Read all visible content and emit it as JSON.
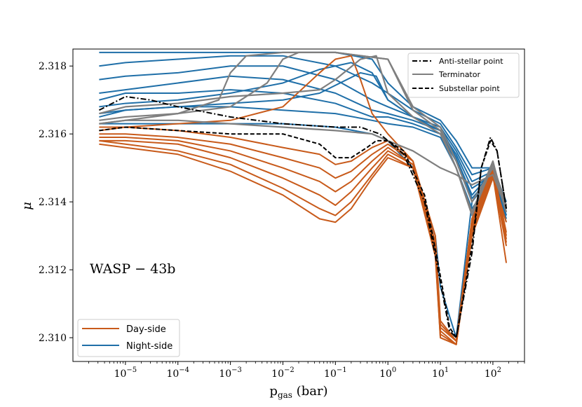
{
  "chart_data": {
    "type": "line",
    "title": "",
    "xlabel_main": "p",
    "xlabel_sub": "gas",
    "xlabel_unit": "(bar)",
    "ylabel": "μ",
    "xscale": "log",
    "xlim": [
      1e-06,
      400
    ],
    "ylim": [
      2.3093,
      2.3185
    ],
    "xticks": [
      {
        "value": 1e-05,
        "base": "10",
        "exp": "−5"
      },
      {
        "value": 0.0001,
        "base": "10",
        "exp": "−4"
      },
      {
        "value": 0.001,
        "base": "10",
        "exp": "−3"
      },
      {
        "value": 0.01,
        "base": "10",
        "exp": "−2"
      },
      {
        "value": 0.1,
        "base": "10",
        "exp": "−1"
      },
      {
        "value": 1,
        "base": "10",
        "exp": "0"
      },
      {
        "value": 10,
        "base": "10",
        "exp": "1"
      },
      {
        "value": 100,
        "base": "10",
        "exp": "2"
      }
    ],
    "yticks": [
      {
        "value": 2.31,
        "label": "2.310"
      },
      {
        "value": 2.312,
        "label": "2.312"
      },
      {
        "value": 2.314,
        "label": "2.314"
      },
      {
        "value": 2.316,
        "label": "2.316"
      },
      {
        "value": 2.318,
        "label": "2.318"
      }
    ],
    "annotation": "WASP − 43b",
    "colors": {
      "day": "#c85a1a",
      "night": "#1f6fa8",
      "terminator": "#7f7f7f",
      "special": "#000000"
    },
    "legend_top_right": [
      {
        "label": "Anti-stellar point",
        "style": "dashdot",
        "color": "#000000"
      },
      {
        "label": "Terminator",
        "style": "solid",
        "color": "#7f7f7f"
      },
      {
        "label": "Substellar point",
        "style": "dashed",
        "color": "#000000"
      }
    ],
    "legend_bottom_left": [
      {
        "label": "Day-side",
        "color": "#c85a1a"
      },
      {
        "label": "Night-side",
        "color": "#1f6fa8"
      }
    ],
    "series": [
      {
        "name": "Night-side",
        "group": "night",
        "x": [
          3.16e-06,
          1e-05,
          0.0001,
          0.001,
          0.01,
          0.1,
          0.5,
          1,
          3,
          10,
          20,
          40,
          100,
          180
        ],
        "y": [
          2.3184,
          2.3184,
          2.3184,
          2.3184,
          2.3184,
          2.3184,
          2.3182,
          2.3175,
          2.3168,
          2.3164,
          2.3158,
          2.315,
          2.315,
          2.314
        ]
      },
      {
        "name": "Night-side",
        "group": "night",
        "x": [
          3.16e-06,
          1e-05,
          0.0001,
          0.001,
          0.01,
          0.1,
          0.5,
          1,
          3,
          10,
          20,
          40,
          100,
          180
        ],
        "y": [
          2.318,
          2.3181,
          2.3182,
          2.3183,
          2.3183,
          2.318,
          2.3175,
          2.3172,
          2.3167,
          2.3163,
          2.3156,
          2.3148,
          2.315,
          2.3138
        ]
      },
      {
        "name": "Night-side",
        "group": "night",
        "x": [
          3.16e-06,
          1e-05,
          0.0001,
          0.001,
          0.01,
          0.1,
          0.5,
          1,
          3,
          10,
          20,
          40,
          100,
          180
        ],
        "y": [
          2.3176,
          2.3177,
          2.3178,
          2.318,
          2.318,
          2.3176,
          2.317,
          2.3168,
          2.3165,
          2.3162,
          2.3155,
          2.3146,
          2.3149,
          2.3137
        ]
      },
      {
        "name": "Night-side",
        "group": "night",
        "x": [
          3.16e-06,
          1e-05,
          0.0001,
          0.001,
          0.01,
          0.1,
          0.5,
          1,
          3,
          10,
          20,
          40,
          100,
          180
        ],
        "y": [
          2.3172,
          2.3173,
          2.3175,
          2.3177,
          2.3176,
          2.3172,
          2.3167,
          2.3166,
          2.3164,
          2.3161,
          2.3154,
          2.3144,
          2.3148,
          2.3136
        ]
      },
      {
        "name": "Night-side",
        "group": "night",
        "x": [
          3.16e-06,
          1e-05,
          0.0001,
          0.001,
          0.01,
          0.1,
          0.5,
          1,
          3,
          10,
          20,
          40,
          100,
          180
        ],
        "y": [
          2.317,
          2.3172,
          2.3172,
          2.3173,
          2.3172,
          2.3169,
          2.3165,
          2.3165,
          2.3163,
          2.316,
          2.3152,
          2.314,
          2.3148,
          2.3135
        ]
      },
      {
        "name": "Night-side",
        "group": "night",
        "x": [
          3.16e-06,
          1e-05,
          0.0001,
          0.001,
          0.01,
          0.1,
          0.5,
          1,
          3,
          10,
          20,
          40,
          100,
          180
        ],
        "y": [
          2.3165,
          2.3167,
          2.3168,
          2.3168,
          2.3167,
          2.3166,
          2.3164,
          2.3163,
          2.3162,
          2.3159,
          2.315,
          2.3138,
          2.3147,
          2.3134
        ]
      },
      {
        "name": "Night-side",
        "group": "night",
        "x": [
          3.16e-06,
          1e-05,
          0.0001,
          0.001,
          0.01,
          0.1,
          0.5,
          1,
          3,
          8,
          10,
          20,
          40,
          100,
          180
        ],
        "y": [
          2.3163,
          2.3163,
          2.3163,
          2.3163,
          2.3163,
          2.3162,
          2.316,
          2.3158,
          2.315,
          2.313,
          2.3115,
          2.31,
          2.314,
          2.3149,
          2.3136
        ]
      },
      {
        "name": "Night-side",
        "group": "night",
        "x": [
          3.16e-06,
          1e-05,
          0.0001,
          0.001,
          0.01,
          0.05,
          0.2,
          0.5,
          1,
          3,
          10,
          20,
          40,
          100,
          180
        ],
        "y": [
          2.3168,
          2.3169,
          2.317,
          2.3172,
          2.3175,
          2.3179,
          2.3181,
          2.3178,
          2.317,
          2.3165,
          2.3162,
          2.3153,
          2.3142,
          2.3149,
          2.3137
        ]
      },
      {
        "name": "Night-side",
        "group": "night",
        "x": [
          3.16e-06,
          1e-05,
          0.0001,
          0.001,
          0.01,
          0.05,
          0.3,
          0.6,
          1,
          3,
          10,
          20,
          40,
          100,
          180
        ],
        "y": [
          2.3166,
          2.3167,
          2.3168,
          2.3169,
          2.317,
          2.3172,
          2.3178,
          2.3177,
          2.317,
          2.3165,
          2.3161,
          2.3152,
          2.3141,
          2.3148,
          2.3136
        ]
      },
      {
        "name": "Day-side",
        "group": "day",
        "x": [
          3.16e-06,
          1e-05,
          0.0001,
          0.001,
          0.01,
          0.05,
          0.1,
          0.2,
          0.5,
          1,
          3,
          8,
          10,
          20,
          40,
          100,
          180
        ],
        "y": [
          2.3161,
          2.3162,
          2.3161,
          2.3159,
          2.3156,
          2.3154,
          2.3151,
          2.3152,
          2.3156,
          2.3158,
          2.3152,
          2.313,
          2.3105,
          2.3099,
          2.3135,
          2.315,
          2.313
        ]
      },
      {
        "name": "Day-side",
        "group": "day",
        "x": [
          3.16e-06,
          1e-05,
          0.0001,
          0.001,
          0.01,
          0.05,
          0.1,
          0.2,
          0.5,
          1,
          3,
          8,
          10,
          20,
          40,
          100,
          180
        ],
        "y": [
          2.316,
          2.316,
          2.3159,
          2.3157,
          2.3153,
          2.315,
          2.3147,
          2.3149,
          2.3154,
          2.3157,
          2.3152,
          2.3128,
          2.3103,
          2.3099,
          2.3134,
          2.3149,
          2.3129
        ]
      },
      {
        "name": "Day-side",
        "group": "day",
        "x": [
          3.16e-06,
          1e-05,
          0.0001,
          0.001,
          0.01,
          0.05,
          0.1,
          0.2,
          0.5,
          1,
          3,
          8,
          10,
          20,
          40,
          100,
          180
        ],
        "y": [
          2.3159,
          2.3159,
          2.3158,
          2.3155,
          2.315,
          2.3146,
          2.3143,
          2.3146,
          2.3152,
          2.3156,
          2.3151,
          2.3127,
          2.3102,
          2.3098,
          2.3133,
          2.3149,
          2.3128
        ]
      },
      {
        "name": "Day-side",
        "group": "day",
        "x": [
          3.16e-06,
          1e-05,
          0.0001,
          0.001,
          0.01,
          0.05,
          0.1,
          0.2,
          0.5,
          1,
          3,
          8,
          10,
          20,
          40,
          100,
          180
        ],
        "y": [
          2.3158,
          2.3158,
          2.3157,
          2.3153,
          2.3147,
          2.3142,
          2.3139,
          2.3143,
          2.315,
          2.3155,
          2.3151,
          2.3126,
          2.3101,
          2.3098,
          2.3132,
          2.3148,
          2.3127
        ]
      },
      {
        "name": "Day-side",
        "group": "day",
        "x": [
          3.16e-06,
          1e-05,
          0.0001,
          0.001,
          0.01,
          0.05,
          0.1,
          0.2,
          0.5,
          1,
          3,
          8,
          10,
          20,
          40,
          100,
          180
        ],
        "y": [
          2.3158,
          2.3157,
          2.3155,
          2.3151,
          2.3144,
          2.3138,
          2.3136,
          2.314,
          2.3148,
          2.3154,
          2.315,
          2.3125,
          2.31,
          2.3098,
          2.3131,
          2.3148,
          2.3122
        ]
      },
      {
        "name": "Day-side",
        "group": "day",
        "x": [
          3.16e-06,
          1e-05,
          0.0001,
          0.001,
          0.01,
          0.05,
          0.1,
          0.2,
          0.5,
          1,
          3,
          8,
          10,
          20,
          40,
          100,
          180
        ],
        "y": [
          2.3157,
          2.3156,
          2.3154,
          2.3149,
          2.3142,
          2.3135,
          2.3134,
          2.3138,
          2.3147,
          2.3153,
          2.315,
          2.3124,
          2.31,
          2.3098,
          2.313,
          2.3147,
          2.3134
        ]
      },
      {
        "name": "Day-side",
        "group": "day",
        "x": [
          3.16e-06,
          1e-05,
          0.0001,
          0.001,
          0.01,
          0.05,
          0.1,
          0.2,
          0.3,
          0.5,
          1,
          3,
          8,
          10,
          20,
          40,
          100,
          180
        ],
        "y": [
          2.3162,
          2.3162,
          2.3163,
          2.3164,
          2.3168,
          2.3178,
          2.3182,
          2.3183,
          2.3176,
          2.3166,
          2.316,
          2.3152,
          2.3128,
          2.3104,
          2.3099,
          2.3135,
          2.315,
          2.3131
        ]
      },
      {
        "name": "Terminator",
        "group": "terminator",
        "x": [
          3.16e-06,
          1e-05,
          0.0001,
          0.0006,
          0.001,
          0.002,
          0.01,
          0.1,
          1,
          3,
          10,
          20,
          40,
          100,
          180
        ],
        "y": [
          2.3163,
          2.3164,
          2.3166,
          2.317,
          2.3178,
          2.3183,
          2.3184,
          2.3184,
          2.3182,
          2.3168,
          2.3162,
          2.3152,
          2.314,
          2.315,
          2.3137
        ]
      },
      {
        "name": "Terminator",
        "group": "terminator",
        "x": [
          3.16e-06,
          1e-05,
          0.0001,
          0.001,
          0.005,
          0.01,
          0.02,
          0.1,
          1,
          3,
          10,
          20,
          40,
          100,
          180
        ],
        "y": [
          2.3164,
          2.3165,
          2.3166,
          2.3168,
          2.3175,
          2.3182,
          2.3184,
          2.3184,
          2.3182,
          2.3167,
          2.3161,
          2.315,
          2.3136,
          2.3151,
          2.3139
        ]
      },
      {
        "name": "Terminator",
        "group": "terminator",
        "x": [
          3.16e-06,
          1e-05,
          0.0001,
          0.001,
          0.01,
          0.05,
          0.1,
          0.3,
          0.6,
          1,
          3,
          10,
          20,
          40,
          100,
          180
        ],
        "y": [
          2.3166,
          2.3168,
          2.3169,
          2.3171,
          2.3172,
          2.3173,
          2.3176,
          2.3182,
          2.3183,
          2.3172,
          2.3165,
          2.316,
          2.315,
          2.3137,
          2.3152,
          2.3137
        ]
      },
      {
        "name": "Terminator",
        "group": "terminator",
        "x": [
          3.16e-06,
          1e-05,
          0.0001,
          0.001,
          0.01,
          0.1,
          0.5,
          1,
          3,
          10,
          20,
          40,
          100,
          180
        ],
        "y": [
          2.3163,
          2.3164,
          2.3164,
          2.3163,
          2.3162,
          2.3161,
          2.316,
          2.3158,
          2.3155,
          2.315,
          2.3148,
          2.3145,
          2.3148,
          2.3138
        ]
      },
      {
        "name": "Anti-stellar point",
        "group": "anti",
        "x": [
          3.16e-06,
          1e-05,
          3e-05,
          0.0001,
          0.001,
          0.01,
          0.1,
          0.3,
          0.7,
          1,
          2,
          5,
          9,
          15,
          20,
          40,
          60,
          90,
          120,
          180
        ],
        "y": [
          2.3167,
          2.3171,
          2.317,
          2.3168,
          2.3165,
          2.3163,
          2.3162,
          2.3162,
          2.316,
          2.3158,
          2.3154,
          2.314,
          2.312,
          2.3102,
          2.31,
          2.3125,
          2.315,
          2.3159,
          2.3155,
          2.3138
        ]
      },
      {
        "name": "Substellar point",
        "group": "sub",
        "x": [
          3.16e-06,
          1e-05,
          0.0001,
          0.001,
          0.01,
          0.05,
          0.1,
          0.2,
          0.4,
          0.6,
          1,
          2,
          5,
          9,
          15,
          20,
          40,
          60,
          90,
          120,
          180
        ],
        "y": [
          2.3161,
          2.3162,
          2.3161,
          2.316,
          2.316,
          2.3157,
          2.3153,
          2.3153,
          2.3156,
          2.3158,
          2.3158,
          2.3155,
          2.3142,
          2.3122,
          2.3103,
          2.31,
          2.3127,
          2.315,
          2.3158,
          2.3155,
          2.3138
        ]
      }
    ]
  }
}
